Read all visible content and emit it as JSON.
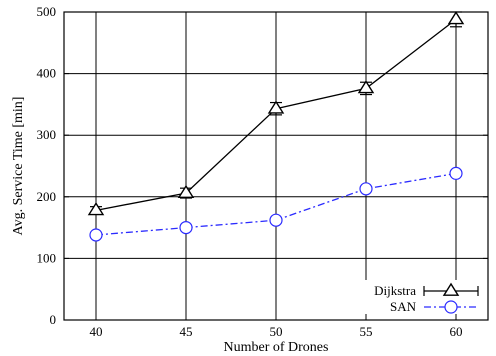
{
  "chart_data": {
    "type": "line",
    "categories": [
      40,
      45,
      50,
      55,
      60
    ],
    "xlabel": "Number of Drones",
    "ylabel": "Avg. Service Time [min]",
    "ylim": [
      0,
      500
    ],
    "yticks": [
      0,
      100,
      200,
      300,
      400,
      500
    ],
    "grid": true,
    "legend_position": "bottom-right",
    "series": [
      {
        "name": "Dijkstra",
        "values": [
          178,
          206,
          343,
          376,
          488
        ],
        "errors": [
          6,
          8,
          10,
          10,
          12
        ],
        "color": "#000000",
        "marker": "triangle-up",
        "line": "solid"
      },
      {
        "name": "SAN",
        "values": [
          138,
          150,
          162,
          213,
          238
        ],
        "errors": [
          0,
          0,
          0,
          0,
          0
        ],
        "color": "#2b2bff",
        "marker": "circle-open",
        "line": "dash-dot"
      }
    ]
  }
}
